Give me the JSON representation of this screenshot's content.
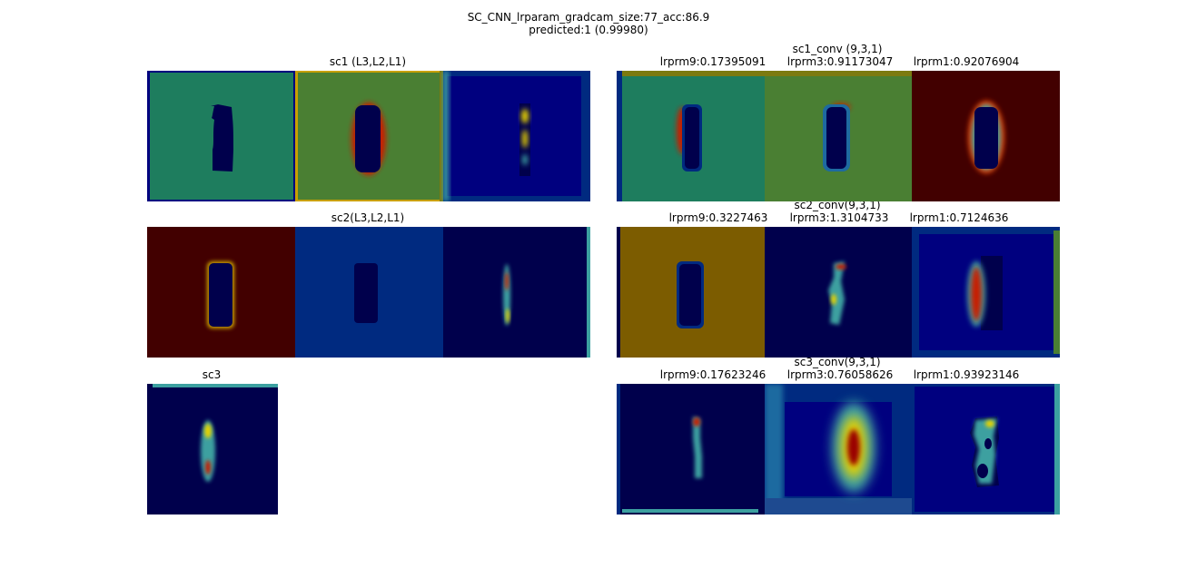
{
  "figure": {
    "title_line1": "SC_CNN_lrparam_gradcam_size:77_acc:86.9",
    "title_line2": "predicted:1 (0.99980)"
  },
  "row1": {
    "left_title": "sc1 (L3,L2,L1)",
    "right_title": "sc1_conv (9,3,1)",
    "right_labels": [
      "lrprm9:0.17395091",
      "lrprm3:0.91173047",
      "lrprm1:0.92076904"
    ]
  },
  "row2": {
    "left_title": "sc2(L3,L2,L1)",
    "right_title": "sc2_conv(9,3,1)",
    "right_labels": [
      "lrprm9:0.3227463",
      "lrprm3:1.3104733",
      "lrprm1:0.7124636"
    ]
  },
  "row3": {
    "left_title": "sc3",
    "right_title": "sc3_conv(9,3,1)",
    "right_labels": [
      "lrprm9:0.17623246",
      "lrprm3:0.76058626",
      "lrprm1:0.93923146"
    ]
  },
  "colors": {
    "jet_dark_blue": "#00004c",
    "jet_blue": "#00007f",
    "jet_mid_blue": "#002a80",
    "teal": "#1e7d5e",
    "green": "#4a7f33",
    "olive": "#7c5c00",
    "dark_red": "#420000",
    "hot_red": "#c81e00",
    "hot_yellow": "#e6d200",
    "cyan": "#3ca0a0"
  }
}
